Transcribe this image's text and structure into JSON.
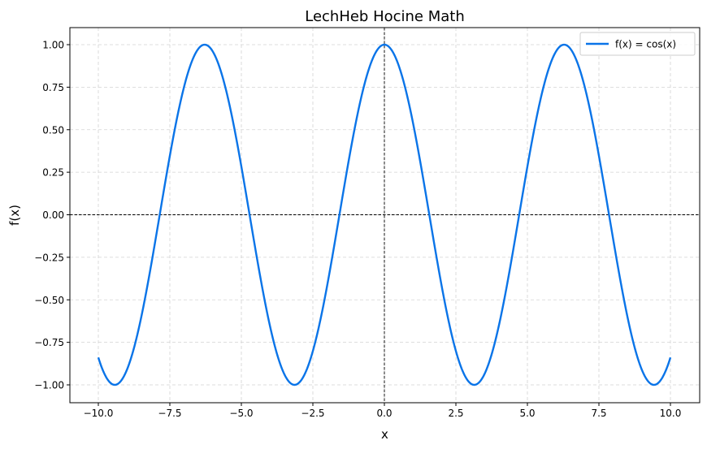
{
  "chart_data": {
    "type": "line",
    "title": "LechHeb Hocine Math",
    "xlabel": "x",
    "ylabel": "f(x)",
    "xlim": [
      -10.0,
      10.0
    ],
    "ylim": [
      -1.0,
      1.0
    ],
    "xticks": [
      -10.0,
      -7.5,
      -5.0,
      -2.5,
      0.0,
      2.5,
      5.0,
      7.5,
      10.0
    ],
    "xtick_labels": [
      "−10.0",
      "−7.5",
      "−5.0",
      "−2.5",
      "0.0",
      "2.5",
      "5.0",
      "7.5",
      "10.0"
    ],
    "yticks": [
      -1.0,
      -0.75,
      -0.5,
      -0.25,
      0.0,
      0.25,
      0.5,
      0.75,
      1.0
    ],
    "ytick_labels": [
      "−1.00",
      "−0.75",
      "−0.50",
      "−0.25",
      "0.00",
      "0.25",
      "0.50",
      "0.75",
      "1.00"
    ],
    "grid": true,
    "grid_style": "dashed",
    "reference_lines": [
      "x = 0",
      "y = 0"
    ],
    "legend_position": "top-right",
    "series": [
      {
        "name": "f(x) = cos(x)",
        "function": "cos",
        "color": "#0a74e8",
        "x_range": [
          -10.0,
          10.0
        ],
        "key_points": {
          "maxima": [
            [
              -6.283,
              1.0
            ],
            [
              0.0,
              1.0
            ],
            [
              6.283,
              1.0
            ]
          ],
          "minima": [
            [
              -9.425,
              -1.0
            ],
            [
              -3.142,
              -1.0
            ],
            [
              3.142,
              -1.0
            ],
            [
              9.425,
              -1.0
            ]
          ],
          "zeros": [
            -7.854,
            -4.712,
            -1.571,
            1.571,
            4.712,
            7.854
          ],
          "endpoints": [
            [
              -10.0,
              -0.839
            ],
            [
              10.0,
              -0.839
            ]
          ]
        }
      }
    ]
  }
}
